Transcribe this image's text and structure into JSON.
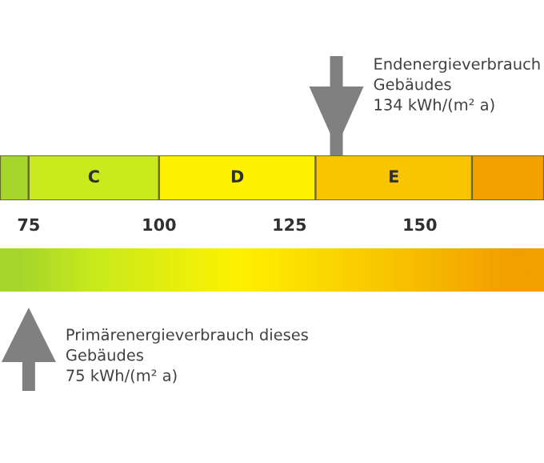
{
  "chart_data": {
    "type": "bar",
    "orientation": "horizontal",
    "categories": [
      null
    ],
    "xlim": [
      69.5,
      173.8
    ],
    "xticks": [
      75,
      100,
      125,
      150
    ],
    "series": [
      {
        "color": "#a5d62c",
        "base": [
          69.5
        ],
        "values": [
          5.5
        ]
      },
      {
        "name": "C",
        "color": "#c9ea1c",
        "base": [
          75
        ],
        "values": [
          25
        ]
      },
      {
        "name": "D",
        "color": "#fff200",
        "base": [
          100
        ],
        "values": [
          30
        ]
      },
      {
        "name": "E",
        "color": "#f9c400",
        "base": [
          130
        ],
        "values": [
          30
        ]
      },
      {
        "color": "#f3a000",
        "base": [
          160
        ],
        "values": [
          13.8
        ]
      }
    ],
    "bands": [
      {
        "axis": "x",
        "from": 69.5,
        "to": 173.8,
        "label": null
      }
    ],
    "ref_lines": [
      {
        "axis": "x",
        "value": 134,
        "label": "Endenergieverbrauch\nGebäudes\n134 kWh/(m² a)",
        "color": "#808080"
      },
      {
        "axis": "x",
        "value": 75,
        "label": "Primärenergieverbrauch dieses\nGebäudes\n75 kWh/(m² a)",
        "color": "#808080"
      }
    ]
  }
}
